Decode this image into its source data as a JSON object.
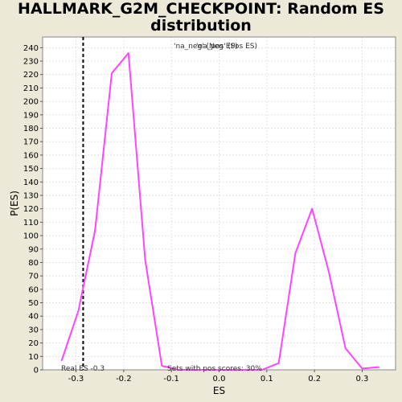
{
  "chart_data": {
    "type": "line",
    "title_line1": "HALLMARK_G2M_CHECKPOINT: Random ES",
    "title_line2": "distribution",
    "xlabel": "ES",
    "ylabel": "P(ES)",
    "xlim": [
      -0.37,
      0.37
    ],
    "ylim": [
      0,
      248
    ],
    "x_ticks": [
      -0.3,
      -0.2,
      -0.1,
      0.0,
      0.1,
      0.2,
      0.3
    ],
    "x_tick_labels": [
      "-0.3",
      "-0.2",
      "-0.1",
      "0.0",
      "0.1",
      "0.2",
      "0.3"
    ],
    "y_ticks": [
      0,
      10,
      20,
      30,
      40,
      50,
      60,
      70,
      80,
      90,
      100,
      110,
      120,
      130,
      140,
      150,
      160,
      170,
      180,
      190,
      200,
      210,
      220,
      230,
      240
    ],
    "y_tick_labels": [
      "0",
      "10",
      "20",
      "30",
      "40",
      "50",
      "60",
      "70",
      "80",
      "90",
      "100",
      "110",
      "120",
      "130",
      "140",
      "150",
      "160",
      "170",
      "180",
      "190",
      "200",
      "210",
      "220",
      "230",
      "240"
    ],
    "grid": true,
    "series": [
      {
        "name": "",
        "color": "#ff44ff",
        "x": [
          -0.33,
          -0.295,
          -0.26,
          -0.225,
          -0.19,
          -0.155,
          -0.12,
          -0.085,
          -0.05,
          -0.015,
          0.02,
          0.055,
          0.09,
          0.125,
          0.16,
          0.195,
          0.23,
          0.265,
          0.3,
          0.335
        ],
        "y": [
          7,
          44,
          104,
          221,
          236,
          82,
          3,
          0,
          0,
          0,
          0,
          0,
          0,
          5,
          87,
          120,
          73,
          16,
          1,
          2
        ]
      }
    ],
    "real_es": {
      "value": -0.285,
      "label": "Real ES -0.3"
    },
    "legend_text_a": "'na_neg' (Neg ES)",
    "legend_text_b": "'na_pos' (Pos ES)",
    "annotation": "Sets with pos scores: 30%",
    "colors": {
      "plot_bg": "#ffffff",
      "page_bg": "#ece9d8",
      "grid": "#e2e2e2",
      "legend_neg": "#3333bb",
      "legend_pos": "#dd3366"
    }
  }
}
